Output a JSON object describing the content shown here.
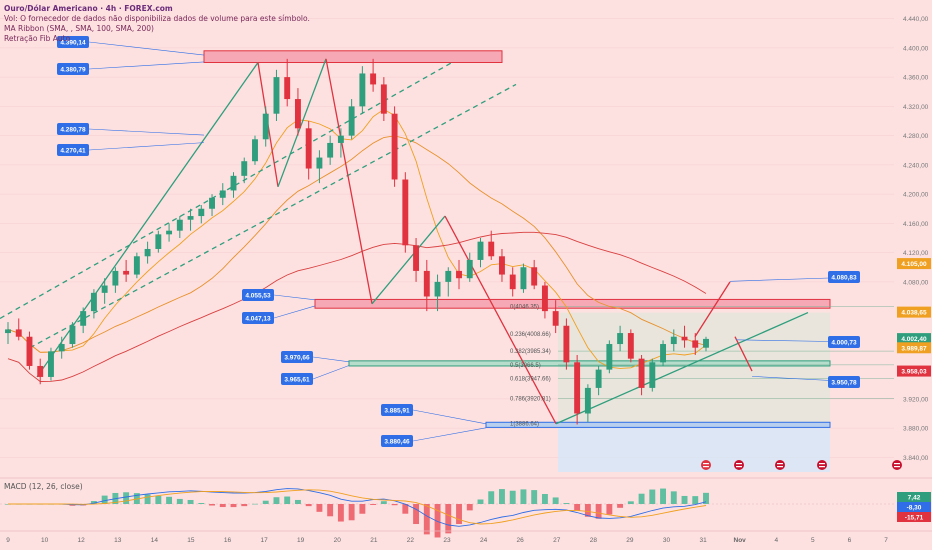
{
  "legend": {
    "title": "Ouro/Dólar Americano · 4h · FOREX.com",
    "volume_note": "Vol: O fornecedor de dados não disponibiliza dados de volume para este símbolo.",
    "ma_ribbon": "MA Ribbon (SMA, , SMA, 100, SMA, 200)",
    "fib": "Retração Fib Auto"
  },
  "macd": {
    "label": "MACD (12, 26, close)"
  },
  "colors": {
    "up": "#2e9e7c",
    "down": "#e0323f",
    "background": "#fde1e1",
    "callout": "#2f6ee6",
    "ma_orange": "#f0a020",
    "ma_red": "#d94040",
    "trend_green": "#2e9e7c"
  },
  "chart_data": {
    "type": "candlestick",
    "timeframe": "4h",
    "ylim": [
      3820,
      4460
    ],
    "y_ticks": [
      "4.440,00",
      "4.400,00",
      "4.360,00",
      "4.320,00",
      "4.280,00",
      "4.240,00",
      "4.200,00",
      "4.160,00",
      "4.120,00",
      "4.080,00",
      "3.920,00",
      "3.880,00",
      "3.840,00"
    ],
    "x_ticks": [
      "9",
      "10",
      "12",
      "13",
      "14",
      "15",
      "16",
      "17",
      "19",
      "20",
      "21",
      "22",
      "23",
      "24",
      "26",
      "27",
      "28",
      "29",
      "30",
      "31",
      "Nov",
      "4",
      "5",
      "6",
      "7"
    ],
    "price_tags": [
      {
        "label": "4.105,00",
        "value": 4105,
        "color": "#f0a020"
      },
      {
        "label": "4.038,65",
        "value": 4038.65,
        "color": "#f0a020"
      },
      {
        "label": "4.002,40",
        "value": 4002.4,
        "color": "#2e9e7c"
      },
      {
        "label": "3.989,87",
        "value": 3989.87,
        "color": "#f0a020"
      },
      {
        "label": "3.958,03",
        "value": 3958.03,
        "color": "#e0323f"
      }
    ],
    "callouts": [
      {
        "label": "4.390,14",
        "value": 4390.14
      },
      {
        "label": "4.380,79",
        "value": 4380.79
      },
      {
        "label": "4.280,78",
        "value": 4280.78
      },
      {
        "label": "4.270,41",
        "value": 4270.41
      },
      {
        "label": "4.055,53",
        "value": 4055.53
      },
      {
        "label": "4.047,13",
        "value": 4047.13
      },
      {
        "label": "3.970,66",
        "value": 3970.66
      },
      {
        "label": "3.965,61",
        "value": 3965.61
      },
      {
        "label": "3.885,91",
        "value": 3885.91
      },
      {
        "label": "3.880,46",
        "value": 3880.46
      },
      {
        "label": "4.080,83",
        "value": 4080.83
      },
      {
        "label": "4.000,73",
        "value": 4000.73
      },
      {
        "label": "3.950,78",
        "value": 3950.78
      }
    ],
    "fib_levels": [
      {
        "label": "0(4046.35)",
        "value": 4046.35
      },
      {
        "label": "0.236(4008.66)",
        "value": 4008.66
      },
      {
        "label": "0.382(3985.34)",
        "value": 3985.34
      },
      {
        "label": "0.5(3966.5)",
        "value": 3966.5
      },
      {
        "label": "0.618(3947.66)",
        "value": 3947.66
      },
      {
        "label": "0.786(3920.81)",
        "value": 3920.81
      },
      {
        "label": "1(3886.64)",
        "value": 3886.64
      }
    ],
    "candles": [
      [
        4010,
        4025,
        3995,
        4015
      ],
      [
        4015,
        4030,
        4000,
        4005
      ],
      [
        4005,
        4012,
        3960,
        3965
      ],
      [
        3965,
        3975,
        3940,
        3950
      ],
      [
        3950,
        3990,
        3945,
        3985
      ],
      [
        3985,
        4005,
        3975,
        3995
      ],
      [
        3995,
        4025,
        3990,
        4020
      ],
      [
        4020,
        4045,
        4010,
        4040
      ],
      [
        4040,
        4070,
        4030,
        4065
      ],
      [
        4065,
        4085,
        4050,
        4075
      ],
      [
        4075,
        4100,
        4065,
        4095
      ],
      [
        4095,
        4110,
        4080,
        4090
      ],
      [
        4090,
        4120,
        4085,
        4115
      ],
      [
        4115,
        4135,
        4105,
        4125
      ],
      [
        4125,
        4150,
        4120,
        4145
      ],
      [
        4145,
        4160,
        4135,
        4150
      ],
      [
        4150,
        4170,
        4140,
        4165
      ],
      [
        4165,
        4180,
        4150,
        4170
      ],
      [
        4170,
        4185,
        4160,
        4180
      ],
      [
        4180,
        4200,
        4170,
        4195
      ],
      [
        4195,
        4215,
        4185,
        4205
      ],
      [
        4205,
        4230,
        4195,
        4225
      ],
      [
        4225,
        4250,
        4215,
        4245
      ],
      [
        4245,
        4280,
        4240,
        4275
      ],
      [
        4275,
        4320,
        4265,
        4310
      ],
      [
        4310,
        4370,
        4300,
        4360
      ],
      [
        4360,
        4385,
        4320,
        4330
      ],
      [
        4330,
        4345,
        4280,
        4290
      ],
      [
        4290,
        4300,
        4220,
        4235
      ],
      [
        4235,
        4260,
        4215,
        4250
      ],
      [
        4250,
        4280,
        4240,
        4270
      ],
      [
        4270,
        4290,
        4250,
        4280
      ],
      [
        4280,
        4330,
        4275,
        4320
      ],
      [
        4320,
        4375,
        4310,
        4365
      ],
      [
        4365,
        4385,
        4340,
        4350
      ],
      [
        4350,
        4360,
        4300,
        4310
      ],
      [
        4310,
        4320,
        4210,
        4220
      ],
      [
        4220,
        4230,
        4120,
        4130
      ],
      [
        4130,
        4140,
        4080,
        4095
      ],
      [
        4095,
        4110,
        4040,
        4060
      ],
      [
        4060,
        4090,
        4040,
        4080
      ],
      [
        4080,
        4100,
        4060,
        4095
      ],
      [
        4095,
        4110,
        4070,
        4085
      ],
      [
        4085,
        4120,
        4080,
        4110
      ],
      [
        4110,
        4140,
        4100,
        4135
      ],
      [
        4135,
        4150,
        4110,
        4115
      ],
      [
        4115,
        4125,
        4080,
        4090
      ],
      [
        4090,
        4100,
        4060,
        4070
      ],
      [
        4070,
        4105,
        4065,
        4100
      ],
      [
        4100,
        4110,
        4070,
        4075
      ],
      [
        4075,
        4080,
        4030,
        4040
      ],
      [
        4040,
        4055,
        4010,
        4020
      ],
      [
        4020,
        4030,
        3960,
        3970
      ],
      [
        3970,
        3980,
        3885,
        3900
      ],
      [
        3900,
        3940,
        3888,
        3935
      ],
      [
        3935,
        3965,
        3925,
        3960
      ],
      [
        3960,
        4000,
        3955,
        3995
      ],
      [
        3995,
        4020,
        3985,
        4010
      ],
      [
        4010,
        4015,
        3970,
        3975
      ],
      [
        3975,
        3980,
        3925,
        3935
      ],
      [
        3935,
        3975,
        3930,
        3970
      ],
      [
        3970,
        4000,
        3965,
        3995
      ],
      [
        3995,
        4015,
        3985,
        4005
      ],
      [
        4005,
        4020,
        3990,
        4000
      ],
      [
        4000,
        4010,
        3980,
        3990
      ],
      [
        3990,
        4005,
        3985,
        4002
      ]
    ]
  }
}
